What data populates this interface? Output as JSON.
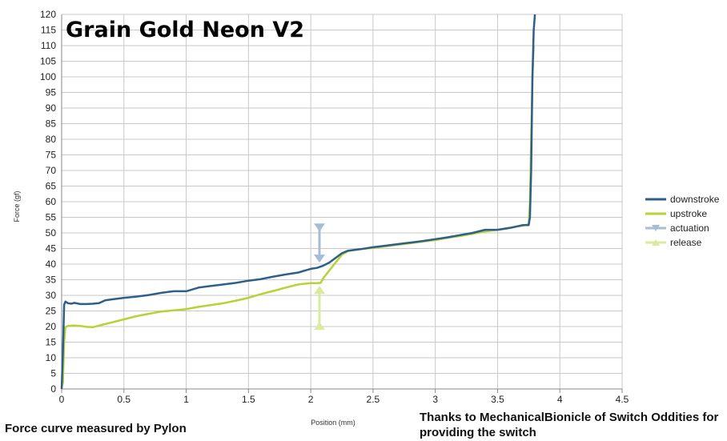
{
  "chart_data": {
    "type": "line",
    "title": "Grain Gold Neon V2",
    "xlabel": "Position (mm)",
    "ylabel": "Force (gf)",
    "xlim": [
      0,
      4.5
    ],
    "ylim": [
      0,
      120
    ],
    "x_ticks": [
      "0",
      "0.5",
      "1",
      "1.5",
      "2",
      "2.5",
      "3",
      "3.5",
      "4",
      "4.5"
    ],
    "y_ticks": [
      "0",
      "5",
      "10",
      "15",
      "20",
      "25",
      "30",
      "35",
      "40",
      "45",
      "50",
      "55",
      "60",
      "65",
      "70",
      "75",
      "80",
      "85",
      "90",
      "95",
      "100",
      "105",
      "110",
      "115",
      "120"
    ],
    "grid": true,
    "legend_position": "right",
    "series": [
      {
        "name": "downstroke",
        "color": "#2e5f8a",
        "x": [
          0.0,
          0.01,
          0.02,
          0.03,
          0.05,
          0.08,
          0.1,
          0.15,
          0.2,
          0.25,
          0.3,
          0.35,
          0.4,
          0.5,
          0.6,
          0.7,
          0.8,
          0.9,
          1.0,
          1.1,
          1.2,
          1.3,
          1.4,
          1.5,
          1.6,
          1.7,
          1.8,
          1.9,
          2.0,
          2.05,
          2.1,
          2.15,
          2.2,
          2.25,
          2.3,
          2.4,
          2.5,
          2.6,
          2.7,
          2.8,
          2.9,
          3.0,
          3.1,
          3.2,
          3.3,
          3.4,
          3.5,
          3.6,
          3.7,
          3.75,
          3.76,
          3.77,
          3.78,
          3.79,
          3.8
        ],
        "y": [
          0,
          12,
          27,
          28,
          27.5,
          27.3,
          27.6,
          27.2,
          27.2,
          27.3,
          27.5,
          28.4,
          28.7,
          29.2,
          29.6,
          30.1,
          30.8,
          31.3,
          31.3,
          32.5,
          33.0,
          33.5,
          34.0,
          34.7,
          35.2,
          36.0,
          36.7,
          37.3,
          38.5,
          38.8,
          39.5,
          40.5,
          42.0,
          43.5,
          44.3,
          44.8,
          45.4,
          45.9,
          46.4,
          46.9,
          47.4,
          48.0,
          48.6,
          49.3,
          50.0,
          51.0,
          51.0,
          51.6,
          52.5,
          52.5,
          55,
          70,
          100,
          115,
          120
        ]
      },
      {
        "name": "upstroke",
        "color": "#b5d334",
        "x": [
          0.0,
          0.01,
          0.02,
          0.03,
          0.05,
          0.1,
          0.15,
          0.2,
          0.25,
          0.3,
          0.4,
          0.5,
          0.6,
          0.7,
          0.8,
          0.9,
          1.0,
          1.1,
          1.2,
          1.3,
          1.4,
          1.5,
          1.6,
          1.7,
          1.8,
          1.9,
          2.0,
          2.05,
          2.08,
          2.1,
          2.15,
          2.2,
          2.25,
          2.3,
          2.4,
          2.5,
          2.6,
          2.7,
          2.8,
          2.9,
          3.0,
          3.1,
          3.2,
          3.3,
          3.4,
          3.5,
          3.6,
          3.7,
          3.75,
          3.76,
          3.77,
          3.78,
          3.79
        ],
        "y": [
          0.5,
          2,
          15,
          19.8,
          20.2,
          20.3,
          20.2,
          19.9,
          19.8,
          20.3,
          21.3,
          22.3,
          23.3,
          24.1,
          24.8,
          25.2,
          25.6,
          26.3,
          26.9,
          27.5,
          28.3,
          29.2,
          30.4,
          31.4,
          32.5,
          33.5,
          33.9,
          33.9,
          34.0,
          35.5,
          38.0,
          40.5,
          43.0,
          44.2,
          44.8,
          45.2,
          45.7,
          46.2,
          46.7,
          47.2,
          47.7,
          48.4,
          49.0,
          49.7,
          50.5,
          51.0,
          51.7,
          52.3,
          52.8,
          60,
          80,
          100,
          110
        ]
      }
    ],
    "markers": [
      {
        "name": "actuation",
        "color": "#a7bcd6",
        "shape": "triangle-down",
        "x": 2.07,
        "y_top": 52,
        "y_bottom": 41
      },
      {
        "name": "release",
        "color": "#d9eb9e",
        "shape": "triangle-up",
        "x": 2.07,
        "y_top": 31.5,
        "y_bottom": 21
      }
    ]
  },
  "footer": {
    "left": "Force curve measured by Pylon",
    "right": "Thanks to MechanicalBionicle of Switch Oddities for providing the switch"
  }
}
